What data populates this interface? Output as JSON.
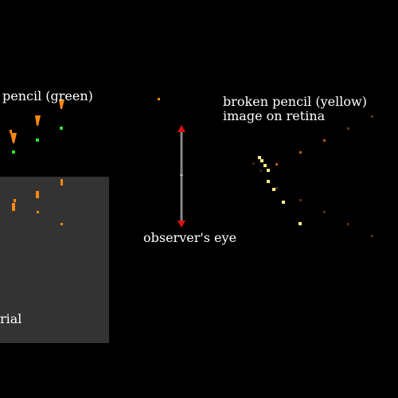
{
  "labels": {
    "pencil": "pencil (green)",
    "broken_pencil": "broken pencil (yellow)",
    "retina": "image on retina",
    "eye": "observer's eye",
    "material": "rial"
  },
  "colors": {
    "background": "#000000",
    "material_panel": "#333333",
    "pencil": "#33dd33",
    "broken_pencil": "#ffee88",
    "orange_markers": "#ff8811",
    "eye_arrow": "#dd1111",
    "eye_axis": "#888888",
    "text": "#ffffff"
  }
}
